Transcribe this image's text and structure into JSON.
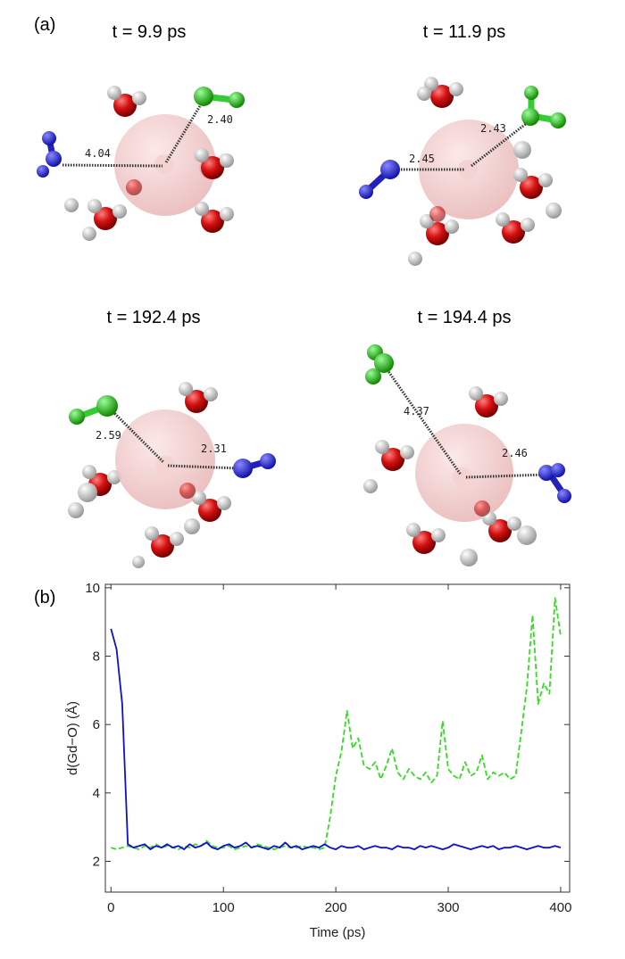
{
  "panel_a": {
    "label": "(a)",
    "snapshots": [
      {
        "title": "t = 9.9 ps",
        "distances": [
          "4.04",
          "2.40"
        ]
      },
      {
        "title": "t = 11.9 ps",
        "distances": [
          "2.45",
          "2.43"
        ]
      },
      {
        "title": "t = 192.4 ps",
        "distances": [
          "2.59",
          "2.31"
        ]
      },
      {
        "title": "t = 194.4 ps",
        "distances": [
          "4.37",
          "2.46"
        ]
      }
    ]
  },
  "panel_b": {
    "label": "(b)"
  },
  "chart_data": {
    "type": "line",
    "x_label": "Time (ps)",
    "y_label": "d(Gd−O) (Å)",
    "x": [
      0,
      5,
      10,
      15,
      20,
      25,
      30,
      35,
      40,
      45,
      50,
      55,
      60,
      65,
      70,
      75,
      80,
      85,
      90,
      95,
      100,
      105,
      110,
      115,
      120,
      125,
      130,
      135,
      140,
      145,
      150,
      155,
      160,
      165,
      170,
      175,
      180,
      185,
      190,
      195,
      200,
      205,
      210,
      215,
      220,
      225,
      230,
      235,
      240,
      245,
      250,
      255,
      260,
      265,
      270,
      275,
      280,
      285,
      290,
      295,
      300,
      305,
      310,
      315,
      320,
      325,
      330,
      335,
      340,
      345,
      350,
      355,
      360,
      365,
      370,
      375,
      380,
      385,
      390,
      395,
      400
    ],
    "series": [
      {
        "color": "#33dd22",
        "dashed": true,
        "values": [
          2.4,
          2.35,
          2.4,
          2.45,
          2.4,
          2.35,
          2.45,
          2.4,
          2.5,
          2.4,
          2.45,
          2.4,
          2.35,
          2.45,
          2.4,
          2.5,
          2.45,
          2.6,
          2.45,
          2.4,
          2.4,
          2.45,
          2.35,
          2.4,
          2.45,
          2.4,
          2.5,
          2.45,
          2.4,
          2.35,
          2.4,
          2.45,
          2.4,
          2.4,
          2.45,
          2.4,
          2.4,
          2.35,
          2.4,
          3.3,
          4.5,
          5.2,
          6.4,
          5.3,
          5.6,
          4.8,
          4.7,
          4.9,
          4.4,
          4.8,
          5.3,
          4.6,
          4.4,
          4.7,
          4.5,
          4.4,
          4.6,
          4.3,
          4.5,
          6.1,
          4.7,
          4.5,
          4.4,
          4.9,
          4.5,
          4.6,
          5.1,
          4.4,
          4.6,
          4.5,
          4.6,
          4.4,
          4.5,
          5.8,
          7.1,
          9.2,
          6.6,
          7.2,
          6.9,
          9.7,
          8.6
        ]
      },
      {
        "color": "#1010c8",
        "dashed": false,
        "values": [
          8.8,
          8.2,
          6.6,
          2.5,
          2.4,
          2.45,
          2.5,
          2.35,
          2.45,
          2.4,
          2.5,
          2.4,
          2.45,
          2.35,
          2.5,
          2.4,
          2.45,
          2.55,
          2.4,
          2.35,
          2.45,
          2.5,
          2.4,
          2.45,
          2.55,
          2.4,
          2.45,
          2.4,
          2.35,
          2.45,
          2.4,
          2.55,
          2.4,
          2.45,
          2.35,
          2.4,
          2.45,
          2.4,
          2.5,
          2.4,
          2.35,
          2.45,
          2.4,
          2.4,
          2.45,
          2.35,
          2.4,
          2.45,
          2.4,
          2.4,
          2.35,
          2.45,
          2.4,
          2.4,
          2.35,
          2.45,
          2.4,
          2.45,
          2.4,
          2.35,
          2.4,
          2.5,
          2.45,
          2.4,
          2.35,
          2.4,
          2.45,
          2.4,
          2.45,
          2.35,
          2.4,
          2.4,
          2.45,
          2.4,
          2.35,
          2.4,
          2.45,
          2.4,
          2.4,
          2.45,
          2.4
        ]
      }
    ],
    "xlim": [
      -5,
      408
    ],
    "ylim": [
      1.1,
      10.1
    ],
    "xticks": [
      0,
      100,
      200,
      300,
      400
    ],
    "yticks": [
      2,
      4,
      6,
      8,
      10
    ]
  }
}
